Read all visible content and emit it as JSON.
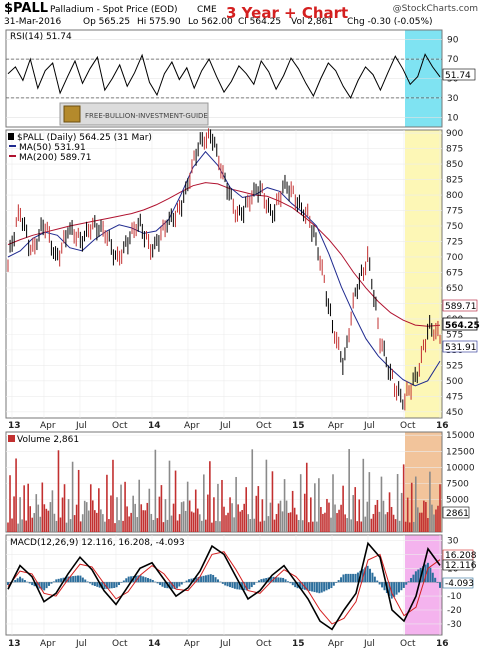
{
  "header": {
    "symbol": "$PALL",
    "name": "Palladium - Spot Price (EOD)",
    "exchange": "CME",
    "watermark": "@StockCharts.com",
    "date": "31-Mar-2016",
    "open": "Op 565.25",
    "high": "Hi 575.90",
    "low": "Lo 562.00",
    "close": "Cl 564.25",
    "volume": "Vol 2,861",
    "change": "Chg -0.30 (-0.05%)",
    "chart_title": "3 Year + Chart"
  },
  "logo_text": "FREE-BULLION-INVESTMENT-GUIDE",
  "colors": {
    "price": "#000000",
    "ma50": "#1f2a8f",
    "ma200": "#b0122f",
    "volume_up": "#c23030",
    "volume_down": "#8a8a8a",
    "highlight_rsi": "#7fe3f2",
    "highlight_price": "#fdf7b6",
    "highlight_volume": "#f2c49b",
    "highlight_macd": "#f4b3ee",
    "macd_hist": "#2c6e9c"
  },
  "chart_data": [
    {
      "type": "line",
      "panel": "rsi",
      "legend": "RSI(14) 51.74",
      "current_label": "51.74",
      "ylim": [
        0,
        100
      ],
      "yticks": [
        10,
        30,
        50,
        70,
        90
      ],
      "reference_lines": [
        30,
        70
      ],
      "values": [
        55,
        62,
        48,
        70,
        40,
        58,
        66,
        35,
        52,
        68,
        45,
        60,
        72,
        38,
        50,
        64,
        42,
        56,
        74,
        46,
        33,
        55,
        67,
        49,
        61,
        40,
        58,
        70,
        52,
        36,
        47,
        63,
        55,
        44,
        68,
        57,
        39,
        53,
        71,
        60,
        45,
        32,
        50,
        66,
        58,
        42,
        30,
        48,
        62,
        54,
        38,
        56,
        73,
        60,
        44,
        52,
        75,
        62,
        51.74
      ]
    },
    {
      "type": "line",
      "panel": "price",
      "legend": "$PALL (Daily) 564.25 (31 Mar)",
      "series": [
        {
          "name": "MA(50) 531.91",
          "current_label": "531.91",
          "values": [
            700,
            710,
            730,
            740,
            735,
            715,
            710,
            728,
            742,
            752,
            747,
            738,
            742,
            760,
            800,
            845,
            870,
            848,
            812,
            796,
            800,
            812,
            806,
            786,
            770,
            750,
            705,
            652,
            608,
            568,
            540,
            520,
            502,
            492,
            500,
            531.91
          ]
        },
        {
          "name": "MA(200) 589.71",
          "current_label": "589.71",
          "values": [
            720,
            728,
            735,
            740,
            745,
            750,
            754,
            758,
            762,
            766,
            770,
            776,
            784,
            794,
            805,
            815,
            820,
            818,
            810,
            805,
            800,
            798,
            790,
            780,
            765,
            748,
            728,
            704,
            675,
            650,
            628,
            610,
            598,
            590,
            588,
            589.71
          ]
        }
      ],
      "price": [
        690,
        770,
        715,
        748,
        700,
        745,
        720,
        760,
        735,
        700,
        728,
        748,
        718,
        740,
        770,
        820,
        880,
        905,
        820,
        770,
        790,
        805,
        775,
        810,
        795,
        770,
        690,
        600,
        520,
        650,
        705,
        560,
        510,
        460,
        505,
        590,
        564.25
      ],
      "x_ticks": [
        "13",
        "Apr",
        "Jul",
        "Oct",
        "14",
        "Apr",
        "Jul",
        "Oct",
        "15",
        "Apr",
        "Jul",
        "Oct",
        "16"
      ],
      "ylim": [
        440,
        905
      ],
      "yticks": [
        450,
        475,
        500,
        525,
        550,
        575,
        600,
        625,
        650,
        675,
        700,
        725,
        750,
        775,
        800,
        825,
        850,
        875,
        900
      ],
      "current_label": "564.25"
    },
    {
      "type": "bar",
      "panel": "volume",
      "legend": "Volume 2,861",
      "current_label": "2861",
      "ylim": [
        0,
        15500
      ],
      "yticks": [
        5000,
        7500,
        10000,
        12500,
        15000
      ],
      "values": [
        4200,
        9000,
        3100,
        6800,
        12500,
        2500,
        5400,
        3800,
        7900,
        2200,
        11000,
        4100,
        6200,
        3000,
        8800,
        5200,
        2600,
        14500,
        4300,
        7100,
        3600,
        5800,
        9400,
        2900,
        4700,
        12900,
        3400,
        6500,
        8200,
        2700,
        5100,
        4000,
        11800,
        3300,
        6100,
        9900,
        4400,
        2800,
        7400,
        5600,
        3700,
        13600,
        4900,
        6900,
        3200,
        8600,
        5000,
        2861
      ]
    },
    {
      "type": "line",
      "panel": "macd",
      "legend": "MACD(12,26,9) 12.116, 16.208, -4.093",
      "current_labels": [
        "16.208",
        "12.116",
        "-4.093"
      ],
      "ylim": [
        -38,
        34
      ],
      "yticks": [
        -30,
        -20,
        -10,
        0,
        10,
        20,
        30
      ],
      "series": [
        {
          "name": "MACD",
          "values": [
            -5,
            12,
            4,
            -14,
            -8,
            6,
            18,
            9,
            -6,
            -16,
            -3,
            10,
            14,
            2,
            -10,
            -4,
            8,
            26,
            20,
            4,
            -12,
            -6,
            5,
            12,
            0,
            -12,
            -28,
            -34,
            -20,
            -8,
            28,
            18,
            -20,
            -28,
            -10,
            24,
            12.116
          ]
        },
        {
          "name": "Signal",
          "values": [
            -3,
            8,
            6,
            -8,
            -10,
            2,
            13,
            11,
            -1,
            -12,
            -7,
            5,
            12,
            6,
            -5,
            -6,
            4,
            20,
            22,
            9,
            -6,
            -8,
            1,
            9,
            4,
            -6,
            -20,
            -30,
            -26,
            -14,
            16,
            20,
            -8,
            -24,
            -18,
            10,
            16.208
          ]
        },
        {
          "name": "Histogram",
          "values": [
            -2,
            4,
            -2,
            -6,
            2,
            4,
            5,
            -2,
            -5,
            -4,
            4,
            5,
            2,
            -4,
            -5,
            2,
            4,
            6,
            -2,
            -5,
            -6,
            2,
            4,
            3,
            -4,
            -6,
            -8,
            -4,
            6,
            6,
            12,
            -2,
            -12,
            -4,
            8,
            14,
            -4.093
          ]
        }
      ],
      "x_ticks": [
        "13",
        "Apr",
        "Jul",
        "Oct",
        "14",
        "Apr",
        "Jul",
        "Oct",
        "15",
        "Apr",
        "Jul",
        "Oct",
        "16"
      ]
    }
  ]
}
